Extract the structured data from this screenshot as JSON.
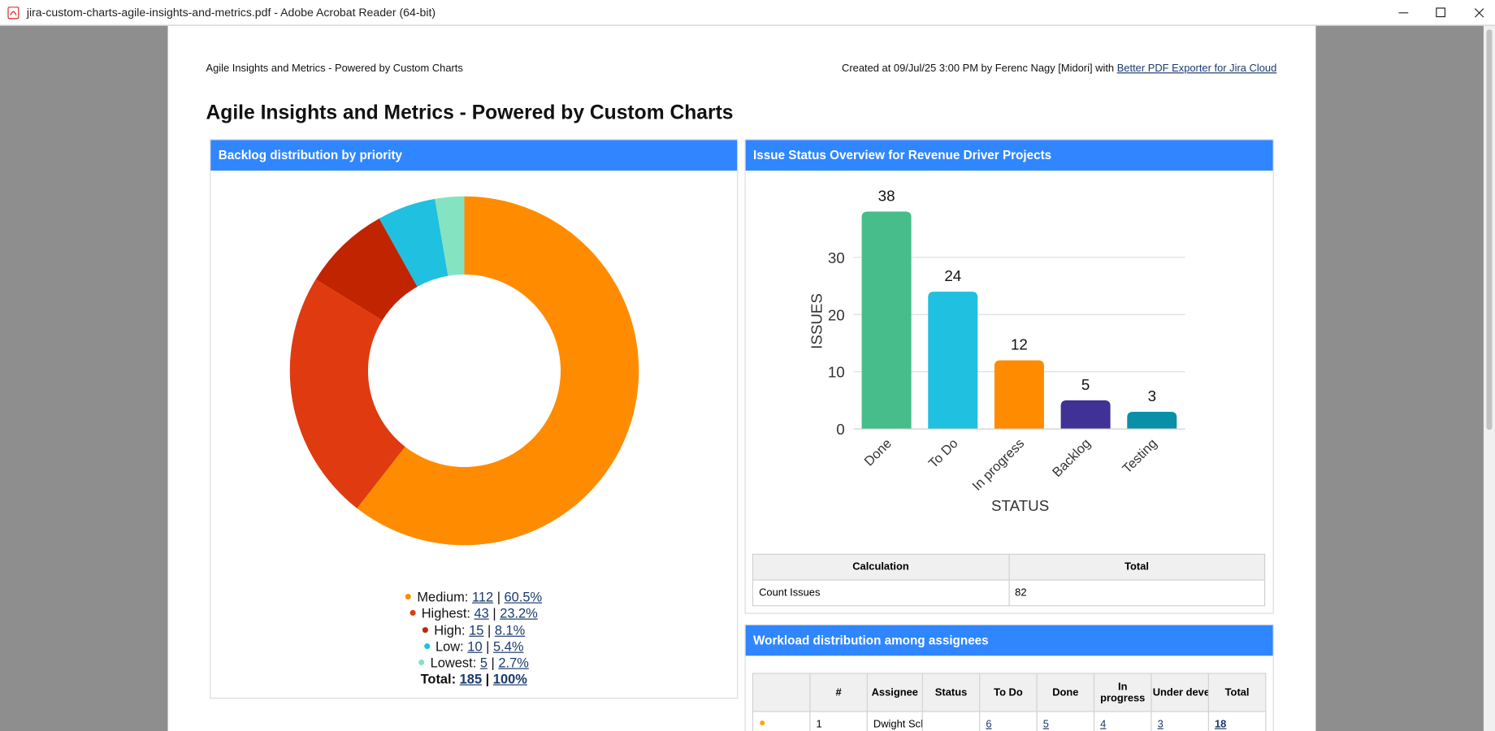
{
  "window": {
    "title": "jira-custom-charts-agile-insights-and-metrics.pdf - Adobe Acrobat Reader (64-bit)"
  },
  "page": {
    "header_left": "Agile Insights and Metrics - Powered by Custom Charts",
    "header_right": "Created at 09/Jul/25 3:00 PM by Ferenc Nagy [Midori] with",
    "header_link": "Better PDF Exporter for Jira Cloud",
    "title": "Agile Insights and Metrics - Powered by Custom Charts"
  },
  "chart_data": [
    {
      "type": "donut",
      "title": "Backlog distribution by priority",
      "categories": [
        "Medium",
        "Highest",
        "High",
        "Low",
        "Lowest"
      ],
      "values": [
        112,
        43,
        15,
        10,
        5
      ],
      "percent_labels": [
        "60.5%",
        "23.2%",
        "8.1%",
        "5.4%",
        "2.7%"
      ],
      "colors": [
        "#ff8c00",
        "#e03a10",
        "#c12400",
        "#1fc0e0",
        "#84e3c0"
      ],
      "label_suffix": ":",
      "separator": "|",
      "total_label": "Total:",
      "total": 185,
      "total_percent_label": "100%"
    },
    {
      "type": "bar",
      "title": "Issue Status Overview for Revenue Driver Projects",
      "categories": [
        "Done",
        "To Do",
        "In progress",
        "Backlog",
        "Testing"
      ],
      "values": [
        38,
        24,
        12,
        5,
        3
      ],
      "colors": [
        "#47bd8c",
        "#1fc0e0",
        "#ff8c00",
        "#3f3196",
        "#0a8fa8"
      ],
      "ylim": [
        0,
        38
      ],
      "yticks": [
        0,
        10,
        20,
        30
      ],
      "xlabel": "STATUS",
      "ylabel": "ISSUES",
      "grid": true
    }
  ],
  "calc_table": {
    "headers": [
      "Calculation",
      "Total"
    ],
    "rows": [
      [
        "Count Issues",
        82
      ]
    ]
  },
  "workload": {
    "title": "Workload distribution among assignees",
    "headers": [
      "#",
      "Assignee",
      "Status",
      "To Do",
      "Done",
      "In progress",
      "Under development",
      "Total"
    ],
    "rows": [
      {
        "index": 1,
        "assignee": "Dwight Schrute",
        "values": [
          6,
          5,
          4,
          3
        ],
        "total": 18
      }
    ]
  }
}
